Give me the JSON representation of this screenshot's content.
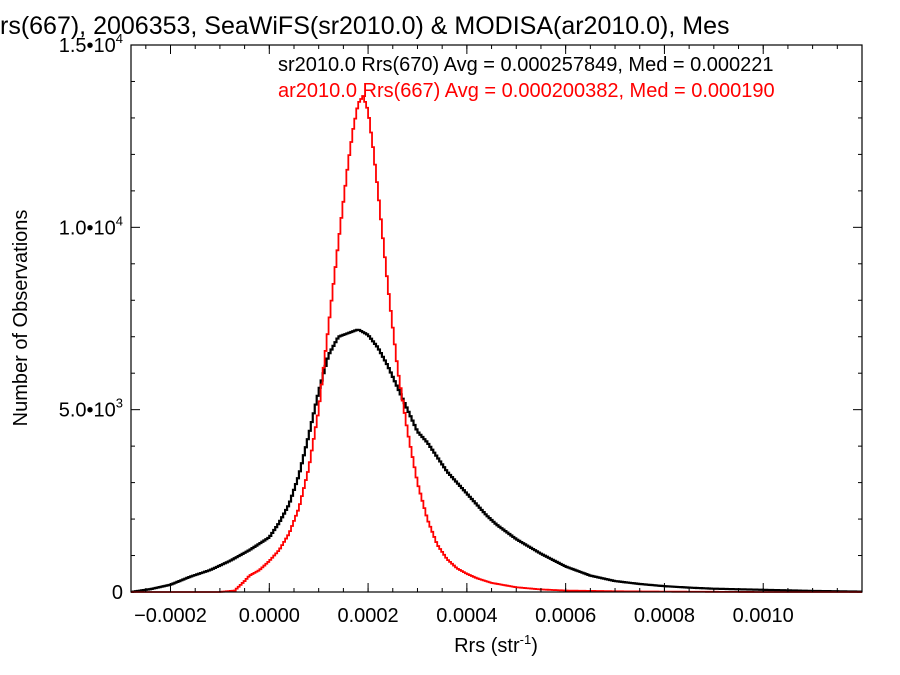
{
  "chart_data": {
    "type": "line",
    "title": "rs(667), 2006353, SeaWiFS(sr2010.0) & MODISA(ar2010.0), Mes",
    "xlabel": "Rrs (str",
    "xlabel_sup": "-1",
    "xlabel_close": ")",
    "ylabel": "Number of Observations",
    "xlim": [
      -0.00028,
      0.0012
    ],
    "ylim": [
      0,
      15000
    ],
    "x_ticks": [
      {
        "value": -0.0002,
        "label": "-0.0002"
      },
      {
        "value": 0.0,
        "label": "0.0000"
      },
      {
        "value": 0.0002,
        "label": "0.0002"
      },
      {
        "value": 0.0004,
        "label": "0.0004"
      },
      {
        "value": 0.0006,
        "label": "0.0006"
      },
      {
        "value": 0.0008,
        "label": "0.0008"
      },
      {
        "value": 0.001,
        "label": "0.0010"
      }
    ],
    "y_ticks": [
      {
        "value": 0,
        "mantissa": "0",
        "exp": ""
      },
      {
        "value": 5000,
        "mantissa": "5.0•10",
        "exp": "3"
      },
      {
        "value": 10000,
        "mantissa": "1.0•10",
        "exp": "4"
      },
      {
        "value": 15000,
        "mantissa": "1.5•10",
        "exp": "4"
      }
    ],
    "annotations": [
      {
        "text": "sr2010.0 Rrs(670) Avg = 0.000257849, Med = 0.000221",
        "color": "#000000"
      },
      {
        "text": "ar2010.0 Rrs(667) Avg = 0.000200382, Med = 0.000190",
        "color": "#ff0000"
      }
    ],
    "series": [
      {
        "color": "#000000",
        "x": [
          -0.00028,
          -0.00024,
          -0.0002,
          -0.00016,
          -0.00012,
          -8e-05,
          -4e-05,
          0.0,
          2e-05,
          4e-05,
          6e-05,
          8e-05,
          0.0001,
          0.00012,
          0.00014,
          0.00016,
          0.00018,
          0.0002,
          0.00022,
          0.00024,
          0.00026,
          0.00028,
          0.0003,
          0.00032,
          0.00034,
          0.00036,
          0.00038,
          0.0004,
          0.00042,
          0.00044,
          0.00046,
          0.00048,
          0.0005,
          0.00055,
          0.0006,
          0.00065,
          0.0007,
          0.00075,
          0.0008,
          0.00085,
          0.0009,
          0.001,
          0.0011,
          0.0012
        ],
        "y": [
          0,
          80,
          200,
          420,
          600,
          850,
          1150,
          1500,
          1900,
          2400,
          3200,
          4300,
          5500,
          6500,
          7000,
          7100,
          7200,
          7050,
          6700,
          6200,
          5600,
          5000,
          4400,
          4100,
          3700,
          3300,
          3000,
          2700,
          2400,
          2100,
          1850,
          1650,
          1450,
          1050,
          700,
          450,
          300,
          220,
          160,
          120,
          90,
          60,
          30,
          10
        ]
      },
      {
        "color": "#ff0000",
        "x": [
          -0.00028,
          -0.0001,
          -7e-05,
          -5e-05,
          -4e-05,
          -2e-05,
          0.0,
          2e-05,
          4e-05,
          6e-05,
          8e-05,
          0.0001,
          0.00012,
          0.00014,
          0.00016,
          0.00017,
          0.00018,
          0.00019,
          0.0002,
          0.00021,
          0.00022,
          0.00023,
          0.00024,
          0.00026,
          0.00028,
          0.0003,
          0.00032,
          0.00034,
          0.00036,
          0.00038,
          0.0004,
          0.00042,
          0.00045,
          0.0005,
          0.00055,
          0.0006,
          0.0007,
          0.0008,
          0.0009,
          0.001,
          0.0012
        ],
        "y": [
          0,
          0,
          40,
          300,
          450,
          600,
          850,
          1150,
          1600,
          2300,
          3400,
          5000,
          7300,
          9600,
          11800,
          12700,
          13400,
          13600,
          13200,
          12200,
          11000,
          9700,
          8400,
          6100,
          4400,
          3000,
          2000,
          1300,
          900,
          650,
          500,
          380,
          250,
          130,
          70,
          40,
          20,
          10,
          5,
          0,
          0
        ]
      }
    ]
  }
}
